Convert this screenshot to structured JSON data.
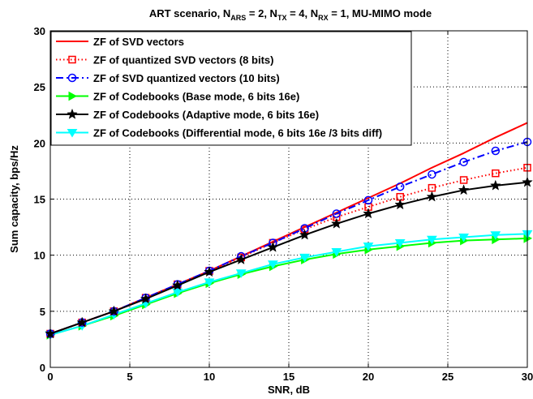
{
  "chart_data": {
    "type": "line",
    "title": {
      "main": "ART scenario, N",
      "sub_ars": "ARS",
      "mid1": " = 2, N",
      "sub_tx": "TX",
      "mid2": " = 4, N",
      "sub_rx": "RX",
      "tail": " = 1, MU-MIMO mode"
    },
    "xlabel": "SNR, dB",
    "ylabel": "Sum capacity, bps/Hz",
    "xlim": [
      0,
      30
    ],
    "ylim": [
      0,
      30
    ],
    "xticks": [
      0,
      5,
      10,
      15,
      20,
      25,
      30
    ],
    "yticks": [
      0,
      5,
      10,
      15,
      20,
      25,
      30
    ],
    "grid": "dotted",
    "legend_position": "top-left",
    "x": [
      0,
      2,
      4,
      6,
      8,
      10,
      12,
      14,
      16,
      18,
      20,
      22,
      24,
      26,
      28,
      30
    ],
    "series": [
      {
        "name": "ZF of SVD vectors",
        "color": "#ff0000",
        "dash": "solid",
        "marker": "none",
        "values": [
          3.0,
          4.0,
          5.0,
          6.2,
          7.4,
          8.6,
          9.9,
          11.2,
          12.5,
          13.8,
          15.1,
          16.4,
          17.8,
          19.1,
          20.5,
          21.8
        ]
      },
      {
        "name": "ZF of quantized SVD vectors (8 bits)",
        "color": "#ff0000",
        "dash": "dotted",
        "marker": "square",
        "values": [
          3.0,
          4.0,
          5.0,
          6.2,
          7.4,
          8.6,
          9.8,
          11.1,
          12.3,
          13.4,
          14.3,
          15.2,
          16.0,
          16.7,
          17.3,
          17.8
        ]
      },
      {
        "name": "ZF of SVD quantized vectors (10 bits)",
        "color": "#0000ff",
        "dash": "dashdot",
        "marker": "circle",
        "values": [
          3.0,
          4.0,
          5.0,
          6.2,
          7.4,
          8.6,
          9.9,
          11.1,
          12.4,
          13.7,
          14.9,
          16.1,
          17.2,
          18.3,
          19.3,
          20.1
        ]
      },
      {
        "name": "ZF of Codebooks (Base mode, 6 bits 16e)",
        "color": "#00ff00",
        "dash": "solid",
        "marker": "triangle-right",
        "values": [
          2.9,
          3.7,
          4.6,
          5.6,
          6.6,
          7.5,
          8.3,
          9.0,
          9.6,
          10.1,
          10.5,
          10.8,
          11.1,
          11.3,
          11.4,
          11.5
        ]
      },
      {
        "name": "ZF of Codebooks (Adaptive mode, 6 bits 16e)",
        "color": "#000000",
        "dash": "solid",
        "marker": "star",
        "values": [
          3.0,
          4.0,
          5.0,
          6.1,
          7.3,
          8.5,
          9.6,
          10.7,
          11.8,
          12.8,
          13.7,
          14.5,
          15.2,
          15.8,
          16.2,
          16.5
        ]
      },
      {
        "name": "ZF of Codebooks (Differential mode, 6 bits 16e /3 bits diff)",
        "color": "#00ffff",
        "dash": "solid",
        "marker": "triangle-down",
        "values": [
          2.9,
          3.7,
          4.7,
          5.7,
          6.7,
          7.6,
          8.4,
          9.2,
          9.8,
          10.3,
          10.8,
          11.1,
          11.4,
          11.6,
          11.8,
          11.9
        ]
      }
    ]
  }
}
